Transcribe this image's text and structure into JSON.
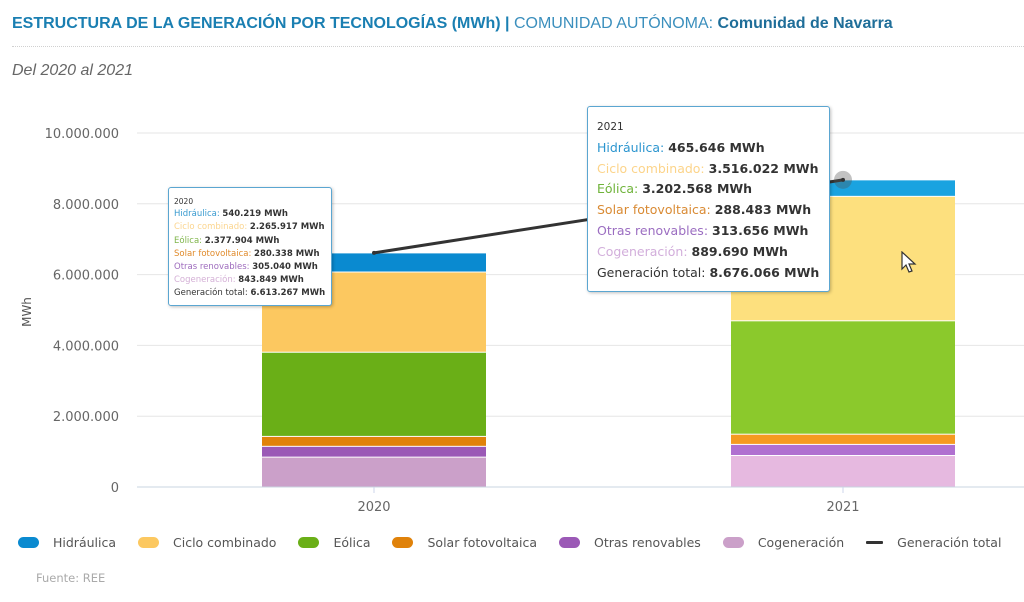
{
  "header": {
    "title_main": "ESTRUCTURA DE LA GENERACIÓN POR TECNOLOGÍAS (MWh)",
    "separator": "|",
    "region_label": "COMUNIDAD AUTÓNOMA:",
    "region_value": "Comunidad de Navarra",
    "subtitle": "Del 2020 al 2021"
  },
  "source": "Fuente: REE",
  "chart_data": {
    "type": "bar",
    "stacked": true,
    "title": "ESTRUCTURA DE LA GENERACIÓN POR TECNOLOGÍAS (MWh)",
    "xlabel": "",
    "ylabel": "MWh",
    "ylim": [
      0,
      10000000
    ],
    "yticks": [
      0,
      2000000,
      4000000,
      6000000,
      8000000,
      10000000
    ],
    "ytick_labels": [
      "0",
      "2.000.000",
      "4.000.000",
      "6.000.000",
      "8.000.000",
      "10.000.000"
    ],
    "grid": true,
    "legend_position": "bottom",
    "categories": [
      "2020",
      "2021"
    ],
    "series": [
      {
        "name": "Cogeneración",
        "color": "#cba0c9",
        "color_2021": "#e6b9e0",
        "values": [
          843849,
          889690
        ]
      },
      {
        "name": "Otras renovables",
        "color": "#9b59b6",
        "color_2021": "#b070d0",
        "values": [
          305040,
          313656
        ]
      },
      {
        "name": "Solar fotovoltaica",
        "color": "#e0820a",
        "color_2021": "#f59a20",
        "values": [
          280338,
          288483
        ]
      },
      {
        "name": "Eólica",
        "color": "#6aaf17",
        "color_2021": "#8bc92c",
        "values": [
          2377904,
          3202568
        ]
      },
      {
        "name": "Ciclo combinado",
        "color": "#fcc860",
        "color_2021": "#fde07e",
        "values": [
          2265917,
          3516022
        ]
      },
      {
        "name": "Hidráulica",
        "color": "#0a8ad0",
        "color_2021": "#1aa3e0",
        "values": [
          540219,
          465646
        ]
      }
    ],
    "line_series": {
      "name": "Generación total",
      "color": "#333333",
      "values": [
        6613267,
        8676066
      ]
    }
  },
  "legend": [
    {
      "name": "Hidráulica",
      "color": "#0a8ad0"
    },
    {
      "name": "Ciclo combinado",
      "color": "#fcc860"
    },
    {
      "name": "Eólica",
      "color": "#6aaf17"
    },
    {
      "name": "Solar fotovoltaica",
      "color": "#e0820a"
    },
    {
      "name": "Otras renovables",
      "color": "#9b59b6"
    },
    {
      "name": "Cogeneración",
      "color": "#cba0c9"
    },
    {
      "name": "Generación total",
      "color": "#333333"
    }
  ],
  "tooltips": [
    {
      "year": "2020",
      "rows": [
        {
          "label": "Hidráulica",
          "value": "540.219 MWh",
          "color": "#3a9bd0"
        },
        {
          "label": "Ciclo combinado",
          "value": "2.265.917 MWh",
          "color": "#fbd58f"
        },
        {
          "label": "Eólica",
          "value": "2.377.904 MWh",
          "color": "#7fb54a"
        },
        {
          "label": "Solar fotovoltaica",
          "value": "280.338 MWh",
          "color": "#e08a2a"
        },
        {
          "label": "Otras renovables",
          "value": "305.040 MWh",
          "color": "#9d6bbd"
        },
        {
          "label": "Cogeneración",
          "value": "843.849 MWh",
          "color": "#d4b0d6"
        },
        {
          "label": "Generación total",
          "value": "6.613.267 MWh",
          "color": "#333333"
        }
      ]
    },
    {
      "year": "2021",
      "rows": [
        {
          "label": "Hidráulica",
          "value": "465.646 MWh",
          "color": "#2b95cf"
        },
        {
          "label": "Ciclo combinado",
          "value": "3.516.022 MWh",
          "color": "#fcd48a"
        },
        {
          "label": "Eólica",
          "value": "3.202.568 MWh",
          "color": "#6fb33a"
        },
        {
          "label": "Solar fotovoltaica",
          "value": "288.483 MWh",
          "color": "#d98a33"
        },
        {
          "label": "Otras renovables",
          "value": "313.656 MWh",
          "color": "#9b6dc1"
        },
        {
          "label": "Cogeneración",
          "value": "889.690 MWh",
          "color": "#d2aedb"
        },
        {
          "label": "Generación total",
          "value": "8.676.066 MWh",
          "color": "#333333"
        }
      ]
    }
  ]
}
